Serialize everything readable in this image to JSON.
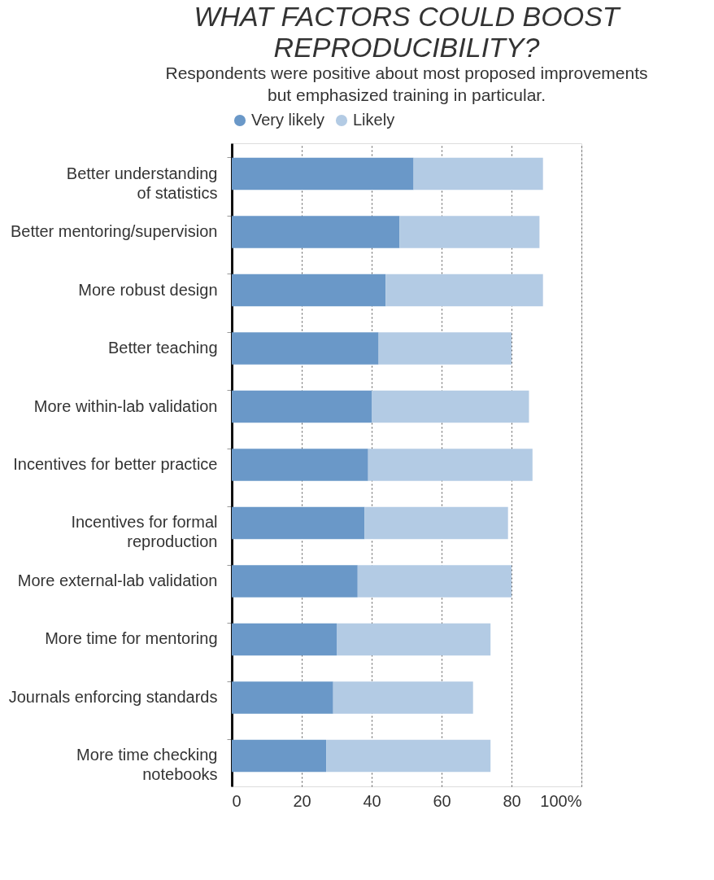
{
  "chart_data": {
    "type": "bar",
    "orientation": "horizontal",
    "stacked": true,
    "title": "WHAT FACTORS COULD BOOST\nREPRODUCIBILITY?",
    "subtitle": "Respondents were positive about most proposed improvements\nbut emphasized training in particular.",
    "categories": [
      "Better understanding\nof statistics",
      "Better mentoring/supervision",
      "More robust design",
      "Better teaching",
      "More within-lab validation",
      "Incentives for better practice",
      "Incentives for formal\nreproduction",
      "More external-lab validation",
      "More time for mentoring",
      "Journals enforcing standards",
      "More time checking\nnotebooks"
    ],
    "series": [
      {
        "name": "Very likely",
        "color": "#6a98c8",
        "values": [
          52,
          48,
          44,
          42,
          40,
          39,
          38,
          36,
          30,
          29,
          27
        ]
      },
      {
        "name": "Likely",
        "color": "#b3cbe4",
        "values": [
          37,
          40,
          45,
          38,
          45,
          47,
          41,
          44,
          44,
          40,
          47
        ]
      }
    ],
    "xlim": [
      0,
      100
    ],
    "xticks": [
      0,
      20,
      40,
      60,
      80,
      {
        "value": 100,
        "label": "100%"
      }
    ],
    "grid": "x",
    "legend": "top"
  }
}
